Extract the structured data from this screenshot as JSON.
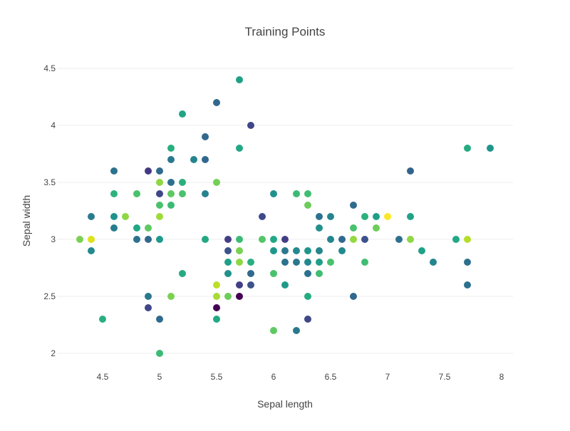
{
  "chart_data": {
    "type": "scatter",
    "title": "Training Points",
    "xlabel": "Sepal length",
    "ylabel": "Sepal width",
    "xlim": [
      4.1,
      8.1
    ],
    "ylim": [
      1.85,
      4.6
    ],
    "x_ticks": [
      {
        "value": 4.5,
        "label": "4.5"
      },
      {
        "value": 5,
        "label": "5"
      },
      {
        "value": 5.5,
        "label": "5.5"
      },
      {
        "value": 6,
        "label": "6"
      },
      {
        "value": 6.5,
        "label": "6.5"
      },
      {
        "value": 7,
        "label": "7"
      },
      {
        "value": 7.5,
        "label": "7.5"
      },
      {
        "value": 8,
        "label": "8"
      }
    ],
    "y_ticks": [
      {
        "value": 2,
        "label": "2"
      },
      {
        "value": 2.5,
        "label": "2.5"
      },
      {
        "value": 3,
        "label": "3"
      },
      {
        "value": 3.5,
        "label": "3.5"
      },
      {
        "value": 4,
        "label": "4"
      },
      {
        "value": 4.5,
        "label": "4.5"
      }
    ],
    "grid": true,
    "legend": "none",
    "colorscale": "viridis",
    "colors": {
      "grid": "#eeeeee",
      "axis_text": "#444444",
      "title_text": "#444444"
    },
    "points": [
      {
        "x": 5.7,
        "y": 4.4,
        "c": "#1fa187"
      },
      {
        "x": 5.5,
        "y": 4.2,
        "c": "#31688e"
      },
      {
        "x": 5.2,
        "y": 4.1,
        "c": "#21a585"
      },
      {
        "x": 5.8,
        "y": 4.0,
        "c": "#3f4788"
      },
      {
        "x": 5.4,
        "y": 3.9,
        "c": "#31688e"
      },
      {
        "x": 5.1,
        "y": 3.8,
        "c": "#29af7f"
      },
      {
        "x": 5.7,
        "y": 3.8,
        "c": "#22a884"
      },
      {
        "x": 7.7,
        "y": 3.8,
        "c": "#25ab82"
      },
      {
        "x": 7.9,
        "y": 3.8,
        "c": "#1f968b"
      },
      {
        "x": 5.1,
        "y": 3.7,
        "c": "#2a788e"
      },
      {
        "x": 5.3,
        "y": 3.7,
        "c": "#25858e"
      },
      {
        "x": 5.4,
        "y": 3.7,
        "c": "#31688e"
      },
      {
        "x": 4.6,
        "y": 3.6,
        "c": "#2c728e"
      },
      {
        "x": 4.9,
        "y": 3.6,
        "c": "#453882"
      },
      {
        "x": 5.0,
        "y": 3.6,
        "c": "#2f6b8e"
      },
      {
        "x": 7.2,
        "y": 3.6,
        "c": "#33638d"
      },
      {
        "x": 5.0,
        "y": 3.5,
        "c": "#8fd744"
      },
      {
        "x": 5.1,
        "y": 3.5,
        "c": "#2d708e"
      },
      {
        "x": 5.2,
        "y": 3.5,
        "c": "#2ab07f"
      },
      {
        "x": 5.5,
        "y": 3.5,
        "c": "#73d056"
      },
      {
        "x": 4.6,
        "y": 3.4,
        "c": "#2db27d"
      },
      {
        "x": 4.8,
        "y": 3.4,
        "c": "#4ac16d"
      },
      {
        "x": 5.0,
        "y": 3.4,
        "c": "#3f4788"
      },
      {
        "x": 5.1,
        "y": 3.4,
        "c": "#5ec962"
      },
      {
        "x": 5.2,
        "y": 3.4,
        "c": "#4ac16d"
      },
      {
        "x": 5.4,
        "y": 3.4,
        "c": "#26828e"
      },
      {
        "x": 6.0,
        "y": 3.4,
        "c": "#21918c"
      },
      {
        "x": 6.2,
        "y": 3.4,
        "c": "#3bbb75"
      },
      {
        "x": 6.3,
        "y": 3.4,
        "c": "#40bd72"
      },
      {
        "x": 5.0,
        "y": 3.3,
        "c": "#4ac16d"
      },
      {
        "x": 5.1,
        "y": 3.3,
        "c": "#3bbb75"
      },
      {
        "x": 6.3,
        "y": 3.3,
        "c": "#6ccd5a"
      },
      {
        "x": 6.7,
        "y": 3.3,
        "c": "#2f6b8e"
      },
      {
        "x": 4.4,
        "y": 3.2,
        "c": "#287c8e"
      },
      {
        "x": 4.6,
        "y": 3.2,
        "c": "#20928c"
      },
      {
        "x": 4.7,
        "y": 3.2,
        "c": "#8fd744"
      },
      {
        "x": 5.0,
        "y": 3.2,
        "c": "#a0da39"
      },
      {
        "x": 5.9,
        "y": 3.2,
        "c": "#3e4989"
      },
      {
        "x": 6.4,
        "y": 3.2,
        "c": "#2c728e"
      },
      {
        "x": 6.5,
        "y": 3.2,
        "c": "#25858e"
      },
      {
        "x": 6.8,
        "y": 3.2,
        "c": "#2db27d"
      },
      {
        "x": 6.9,
        "y": 3.2,
        "c": "#1f9e89"
      },
      {
        "x": 7.0,
        "y": 3.2,
        "c": "#fde725"
      },
      {
        "x": 7.2,
        "y": 3.2,
        "c": "#20a386"
      },
      {
        "x": 4.6,
        "y": 3.1,
        "c": "#287d8e"
      },
      {
        "x": 4.8,
        "y": 3.1,
        "c": "#22a884"
      },
      {
        "x": 4.9,
        "y": 3.1,
        "c": "#5ec962"
      },
      {
        "x": 6.4,
        "y": 3.1,
        "c": "#21918c"
      },
      {
        "x": 6.7,
        "y": 3.1,
        "c": "#4ac16d"
      },
      {
        "x": 6.9,
        "y": 3.1,
        "c": "#6ccd5a"
      },
      {
        "x": 4.3,
        "y": 3.0,
        "c": "#7ad151"
      },
      {
        "x": 4.4,
        "y": 3.0,
        "c": "#dde318"
      },
      {
        "x": 4.8,
        "y": 3.0,
        "c": "#2c728e"
      },
      {
        "x": 4.9,
        "y": 3.0,
        "c": "#31688e"
      },
      {
        "x": 5.0,
        "y": 3.0,
        "c": "#1f9a8a"
      },
      {
        "x": 5.4,
        "y": 3.0,
        "c": "#22a884"
      },
      {
        "x": 5.6,
        "y": 3.0,
        "c": "#433e85"
      },
      {
        "x": 5.7,
        "y": 3.0,
        "c": "#3bbb75"
      },
      {
        "x": 5.9,
        "y": 3.0,
        "c": "#54c568"
      },
      {
        "x": 6.0,
        "y": 3.0,
        "c": "#22a884"
      },
      {
        "x": 6.1,
        "y": 3.0,
        "c": "#433e85"
      },
      {
        "x": 6.5,
        "y": 3.0,
        "c": "#25858e"
      },
      {
        "x": 6.6,
        "y": 3.0,
        "c": "#31688e"
      },
      {
        "x": 6.7,
        "y": 3.0,
        "c": "#95d840"
      },
      {
        "x": 6.8,
        "y": 3.0,
        "c": "#3b528b"
      },
      {
        "x": 7.1,
        "y": 3.0,
        "c": "#2d708e"
      },
      {
        "x": 7.2,
        "y": 3.0,
        "c": "#8fd744"
      },
      {
        "x": 7.6,
        "y": 3.0,
        "c": "#22a884"
      },
      {
        "x": 7.7,
        "y": 3.0,
        "c": "#b5de2b"
      },
      {
        "x": 4.4,
        "y": 2.9,
        "c": "#23898e"
      },
      {
        "x": 5.6,
        "y": 2.9,
        "c": "#3b528b"
      },
      {
        "x": 5.7,
        "y": 2.9,
        "c": "#7ad151"
      },
      {
        "x": 6.0,
        "y": 2.9,
        "c": "#1f968b"
      },
      {
        "x": 6.1,
        "y": 2.9,
        "c": "#2a788e"
      },
      {
        "x": 6.2,
        "y": 2.9,
        "c": "#23898e"
      },
      {
        "x": 6.3,
        "y": 2.9,
        "c": "#1f968b"
      },
      {
        "x": 6.4,
        "y": 2.9,
        "c": "#25858e"
      },
      {
        "x": 6.6,
        "y": 2.9,
        "c": "#23898e"
      },
      {
        "x": 7.3,
        "y": 2.9,
        "c": "#1fa187"
      },
      {
        "x": 5.6,
        "y": 2.8,
        "c": "#1fa187"
      },
      {
        "x": 5.7,
        "y": 2.8,
        "c": "#8fd744"
      },
      {
        "x": 5.8,
        "y": 2.8,
        "c": "#29af7f"
      },
      {
        "x": 6.1,
        "y": 2.8,
        "c": "#2c728e"
      },
      {
        "x": 6.2,
        "y": 2.8,
        "c": "#2a788e"
      },
      {
        "x": 6.3,
        "y": 2.8,
        "c": "#23898e"
      },
      {
        "x": 6.4,
        "y": 2.8,
        "c": "#1f9e89"
      },
      {
        "x": 6.5,
        "y": 2.8,
        "c": "#4ac16d"
      },
      {
        "x": 6.8,
        "y": 2.8,
        "c": "#40bd72"
      },
      {
        "x": 7.4,
        "y": 2.8,
        "c": "#24868e"
      },
      {
        "x": 7.7,
        "y": 2.8,
        "c": "#2d708e"
      },
      {
        "x": 5.2,
        "y": 2.7,
        "c": "#25ab82"
      },
      {
        "x": 5.6,
        "y": 2.7,
        "c": "#21918c"
      },
      {
        "x": 5.8,
        "y": 2.7,
        "c": "#31688e"
      },
      {
        "x": 6.0,
        "y": 2.7,
        "c": "#4ac16d"
      },
      {
        "x": 6.3,
        "y": 2.7,
        "c": "#2c728e"
      },
      {
        "x": 6.4,
        "y": 2.7,
        "c": "#40bd72"
      },
      {
        "x": 5.5,
        "y": 2.6,
        "c": "#bddf26"
      },
      {
        "x": 5.7,
        "y": 2.6,
        "c": "#433e85"
      },
      {
        "x": 5.8,
        "y": 2.6,
        "c": "#3b528b"
      },
      {
        "x": 6.1,
        "y": 2.6,
        "c": "#1f9a8a"
      },
      {
        "x": 7.7,
        "y": 2.6,
        "c": "#2d708e"
      },
      {
        "x": 4.9,
        "y": 2.5,
        "c": "#2a788e"
      },
      {
        "x": 5.1,
        "y": 2.5,
        "c": "#7ad151"
      },
      {
        "x": 5.5,
        "y": 2.5,
        "c": "#a8db34"
      },
      {
        "x": 5.6,
        "y": 2.5,
        "c": "#6ccd5a"
      },
      {
        "x": 5.7,
        "y": 2.5,
        "c": "#440154"
      },
      {
        "x": 6.3,
        "y": 2.5,
        "c": "#25ab82"
      },
      {
        "x": 6.7,
        "y": 2.5,
        "c": "#31688e"
      },
      {
        "x": 4.9,
        "y": 2.4,
        "c": "#3f4788"
      },
      {
        "x": 5.5,
        "y": 2.4,
        "c": "#440154"
      },
      {
        "x": 4.5,
        "y": 2.3,
        "c": "#29af7f"
      },
      {
        "x": 5.0,
        "y": 2.3,
        "c": "#2f6b8e"
      },
      {
        "x": 5.5,
        "y": 2.3,
        "c": "#22a884"
      },
      {
        "x": 6.3,
        "y": 2.3,
        "c": "#3f4788"
      },
      {
        "x": 6.0,
        "y": 2.2,
        "c": "#5ec962"
      },
      {
        "x": 6.2,
        "y": 2.2,
        "c": "#2a788e"
      },
      {
        "x": 5.0,
        "y": 2.0,
        "c": "#3bbb75"
      }
    ]
  }
}
